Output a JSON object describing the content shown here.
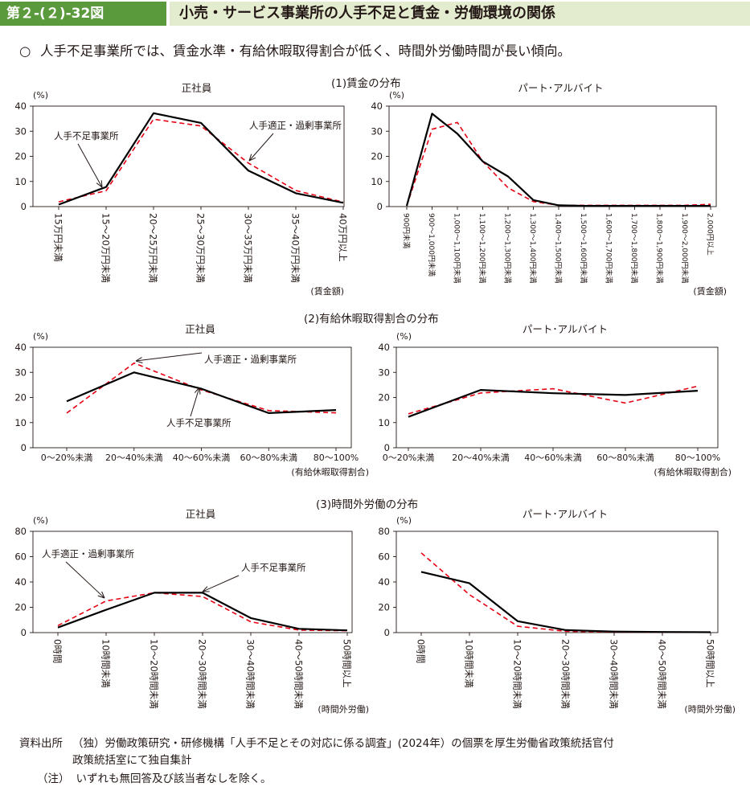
{
  "header": {
    "figure_number": "第２-(２)-32図",
    "title": "小売・サービス事業所の人手不足と賃金・労働環境の関係"
  },
  "summary": {
    "bullet": "○",
    "text": "人手不足事業所では、賃金水準・有給休暇取得割合が低く、時間外労働時間が長い傾向。"
  },
  "sections": {
    "wage": "(1)賃金の分布",
    "leave": "(2)有給休暇取得割合の分布",
    "overtime": "(3)時間外労働の分布"
  },
  "footer": {
    "source_label": "資料出所",
    "source_line1": "（独）労働政策研究・研修機構「人手不足とその対応に係る調査」(2024年）の個票を厚生労働省政策統括官付",
    "source_line2": "政策統括室にて独自集計",
    "note_label": "（注）",
    "note_text": "いずれも無回答及び該当者なしを除く。"
  },
  "colors": {
    "shortage": "#000000",
    "adequate": "#e60012"
  },
  "chart_data": [
    {
      "id": "wage-regular",
      "type": "line",
      "title": "正社員",
      "ylabel": "(%)",
      "xlabel": "(賃金額)",
      "ylim": [
        0,
        40
      ],
      "yticks": [
        0,
        10,
        20,
        30,
        40
      ],
      "categories": [
        "15万円未満",
        "15～20万円未満",
        "20～25万円未満",
        "25～30万円未満",
        "30～35万円未満",
        "35～40万円未満",
        "40万円以上"
      ],
      "series": [
        {
          "name": "人手不足事業所",
          "style": "solid",
          "values": [
            0.8,
            7.8,
            37.2,
            33.3,
            14.3,
            5.3,
            1.5
          ]
        },
        {
          "name": "人手適正・過剰事業所",
          "style": "dashed",
          "values": [
            1.9,
            6.3,
            34.8,
            32.1,
            17.3,
            6.4,
            1.8
          ]
        }
      ],
      "annotations": [
        {
          "text": "人手不足事業所",
          "series": 0
        },
        {
          "text": "人手適正・過剰事業所",
          "series": 1
        }
      ]
    },
    {
      "id": "wage-part",
      "type": "line",
      "title": "パート･アルバイト",
      "ylabel": "(%)",
      "xlabel": "(賃金額)",
      "ylim": [
        0,
        40
      ],
      "yticks": [
        0,
        10,
        20,
        30,
        40
      ],
      "categories": [
        "900円未満",
        "900～1,000円未満",
        "1,000～1,100円未満",
        "1,100～1,200円未満",
        "1,200～1,300円未満",
        "1,300～1,400円未満",
        "1,400～1,500円未満",
        "1,500～1,600円未満",
        "1,600～1,700円未満",
        "1,700～1,800円未満",
        "1,800～1,900円未満",
        "1,900～2,000円未満",
        "2,000円以上"
      ],
      "series": [
        {
          "name": "人手不足事業所",
          "style": "solid",
          "values": [
            0.3,
            37.0,
            29.0,
            18.0,
            12.0,
            2.6,
            0.5,
            0.3,
            0.3,
            0.3,
            0.3,
            0.3,
            0.3
          ]
        },
        {
          "name": "人手適正・過剰事業所",
          "style": "dashed",
          "values": [
            0.3,
            30.8,
            33.5,
            18.0,
            7.5,
            2.0,
            0.5,
            0.5,
            0.5,
            0.5,
            0.5,
            0.5,
            0.9
          ]
        }
      ],
      "annotations": []
    },
    {
      "id": "leave-regular",
      "type": "line",
      "title": "正社員",
      "ylabel": "(%)",
      "xlabel": "(有給休暇取得割合)",
      "ylim": [
        0,
        40
      ],
      "yticks": [
        0,
        10,
        20,
        30,
        40
      ],
      "categories": [
        "0～20%未満",
        "20～40%未満",
        "40～60%未満",
        "60～80%未満",
        "80～100%"
      ],
      "series": [
        {
          "name": "人手不足事業所",
          "style": "solid",
          "values": [
            18.5,
            30.0,
            23.5,
            13.8,
            15.0
          ]
        },
        {
          "name": "人手適正・過剰事業所",
          "style": "dashed",
          "values": [
            13.8,
            33.7,
            23.0,
            14.8,
            13.9
          ]
        }
      ],
      "annotations": [
        {
          "text": "人手適正・過剰事業所",
          "series": 1
        },
        {
          "text": "人手不足事業所",
          "series": 0
        }
      ]
    },
    {
      "id": "leave-part",
      "type": "line",
      "title": "パート･アルバイト",
      "ylabel": "(%)",
      "xlabel": "(有給休暇取得割合)",
      "ylim": [
        0,
        40
      ],
      "yticks": [
        0,
        10,
        20,
        30,
        40
      ],
      "categories": [
        "0～20%未満",
        "20～40%未満",
        "40～60%未満",
        "60～80%未満",
        "80～100%"
      ],
      "series": [
        {
          "name": "人手不足事業所",
          "style": "solid",
          "values": [
            12.3,
            23.0,
            21.7,
            21.0,
            22.7
          ]
        },
        {
          "name": "人手適正・過剰事業所",
          "style": "dashed",
          "values": [
            13.5,
            21.8,
            23.5,
            17.8,
            24.5
          ]
        }
      ],
      "annotations": []
    },
    {
      "id": "overtime-regular",
      "type": "line",
      "title": "正社員",
      "ylabel": "(%)",
      "xlabel": "(時間外労働)",
      "ylim": [
        0,
        80
      ],
      "yticks": [
        0,
        20,
        40,
        60,
        80
      ],
      "categories": [
        "0時間",
        "10時間未満",
        "10～20時間未満",
        "20～30時間未満",
        "30～40時間未満",
        "40～50時間未満",
        "50時間以上"
      ],
      "series": [
        {
          "name": "人手不足事業所",
          "style": "solid",
          "values": [
            4.0,
            18.0,
            31.5,
            31.5,
            11.5,
            3.0,
            1.8
          ]
        },
        {
          "name": "人手適正・過剰事業所",
          "style": "dashed",
          "values": [
            5.5,
            25.0,
            31.5,
            28.5,
            8.5,
            2.0,
            1.5
          ]
        }
      ],
      "annotations": [
        {
          "text": "人手適正・過剰事業所",
          "series": 1
        },
        {
          "text": "人手不足事業所",
          "series": 0
        }
      ]
    },
    {
      "id": "overtime-part",
      "type": "line",
      "title": "パート･アルバイト",
      "ylabel": "(%)",
      "xlabel": "(時間外労働)",
      "ylim": [
        0,
        80
      ],
      "yticks": [
        0,
        20,
        40,
        60,
        80
      ],
      "categories": [
        "0時間",
        "10時間未満",
        "10～20時間未満",
        "20～30時間未満",
        "30～40時間未満",
        "40～50時間未満",
        "50時間以上"
      ],
      "series": [
        {
          "name": "人手不足事業所",
          "style": "solid",
          "values": [
            48.0,
            39.0,
            9.0,
            2.0,
            0.8,
            0.5,
            0.3
          ]
        },
        {
          "name": "人手適正・過剰事業所",
          "style": "dashed",
          "values": [
            63.0,
            30.0,
            5.0,
            1.0,
            0.5,
            0.3,
            0.3
          ]
        }
      ],
      "annotations": []
    }
  ]
}
